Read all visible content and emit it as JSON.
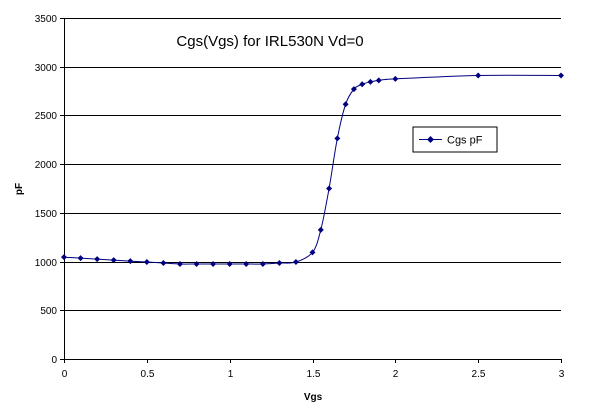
{
  "chart_data": {
    "type": "line",
    "title": "Cgs(Vgs) for IRL530N Vd=0",
    "xlabel": "Vgs",
    "ylabel": "pF",
    "xlim": [
      0,
      3
    ],
    "ylim": [
      0,
      3500
    ],
    "xticks": [
      "0",
      "0.5",
      "1",
      "1.5",
      "2",
      "2.5",
      "3"
    ],
    "yticks": [
      "0",
      "500",
      "1000",
      "1500",
      "2000",
      "2500",
      "3000",
      "3500"
    ],
    "grid": "horizontal",
    "legend_position": "right",
    "series": [
      {
        "name": "Cgs pF",
        "color": "#000080",
        "marker": "diamond",
        "x": [
          0,
          0.1,
          0.2,
          0.3,
          0.4,
          0.5,
          0.6,
          0.7,
          0.8,
          0.9,
          1.0,
          1.1,
          1.2,
          1.3,
          1.4,
          1.5,
          1.55,
          1.6,
          1.65,
          1.7,
          1.75,
          1.8,
          1.85,
          1.9,
          2.0,
          2.5,
          3.0
        ],
        "y": [
          1045,
          1035,
          1025,
          1015,
          1005,
          995,
          985,
          975,
          975,
          975,
          975,
          975,
          975,
          985,
          995,
          1095,
          1325,
          1750,
          2265,
          2615,
          2770,
          2820,
          2845,
          2860,
          2875,
          2910,
          2910
        ]
      }
    ]
  }
}
